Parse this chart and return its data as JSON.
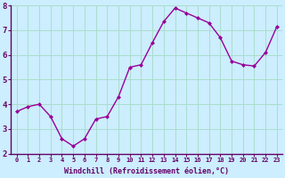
{
  "x": [
    0,
    1,
    2,
    3,
    4,
    5,
    6,
    7,
    8,
    9,
    10,
    11,
    12,
    13,
    14,
    15,
    16,
    17,
    18,
    19,
    20,
    21,
    22,
    23
  ],
  "y": [
    3.7,
    3.9,
    4.0,
    3.5,
    2.6,
    2.3,
    2.6,
    3.4,
    3.5,
    4.3,
    5.5,
    5.6,
    6.5,
    7.35,
    7.9,
    7.7,
    7.5,
    7.3,
    6.7,
    5.75,
    5.6,
    5.55,
    6.1,
    7.15
  ],
  "line_color": "#990099",
  "marker": "D",
  "marker_size": 2,
  "bg_color": "#cceeff",
  "grid_color": "#aaddcc",
  "xlabel": "Windchill (Refroidissement éolien,°C)",
  "xlabel_color": "#660066",
  "tick_color": "#660066",
  "spine_color": "#660066",
  "ylim": [
    2,
    8
  ],
  "xlim": [
    -0.5,
    23.5
  ],
  "yticks": [
    2,
    3,
    4,
    5,
    6,
    7,
    8
  ],
  "xticks": [
    0,
    1,
    2,
    3,
    4,
    5,
    6,
    7,
    8,
    9,
    10,
    11,
    12,
    13,
    14,
    15,
    16,
    17,
    18,
    19,
    20,
    21,
    22,
    23
  ],
  "xtick_fontsize": 5.0,
  "ytick_fontsize": 6.5,
  "xlabel_fontsize": 6.0,
  "linewidth": 1.0
}
